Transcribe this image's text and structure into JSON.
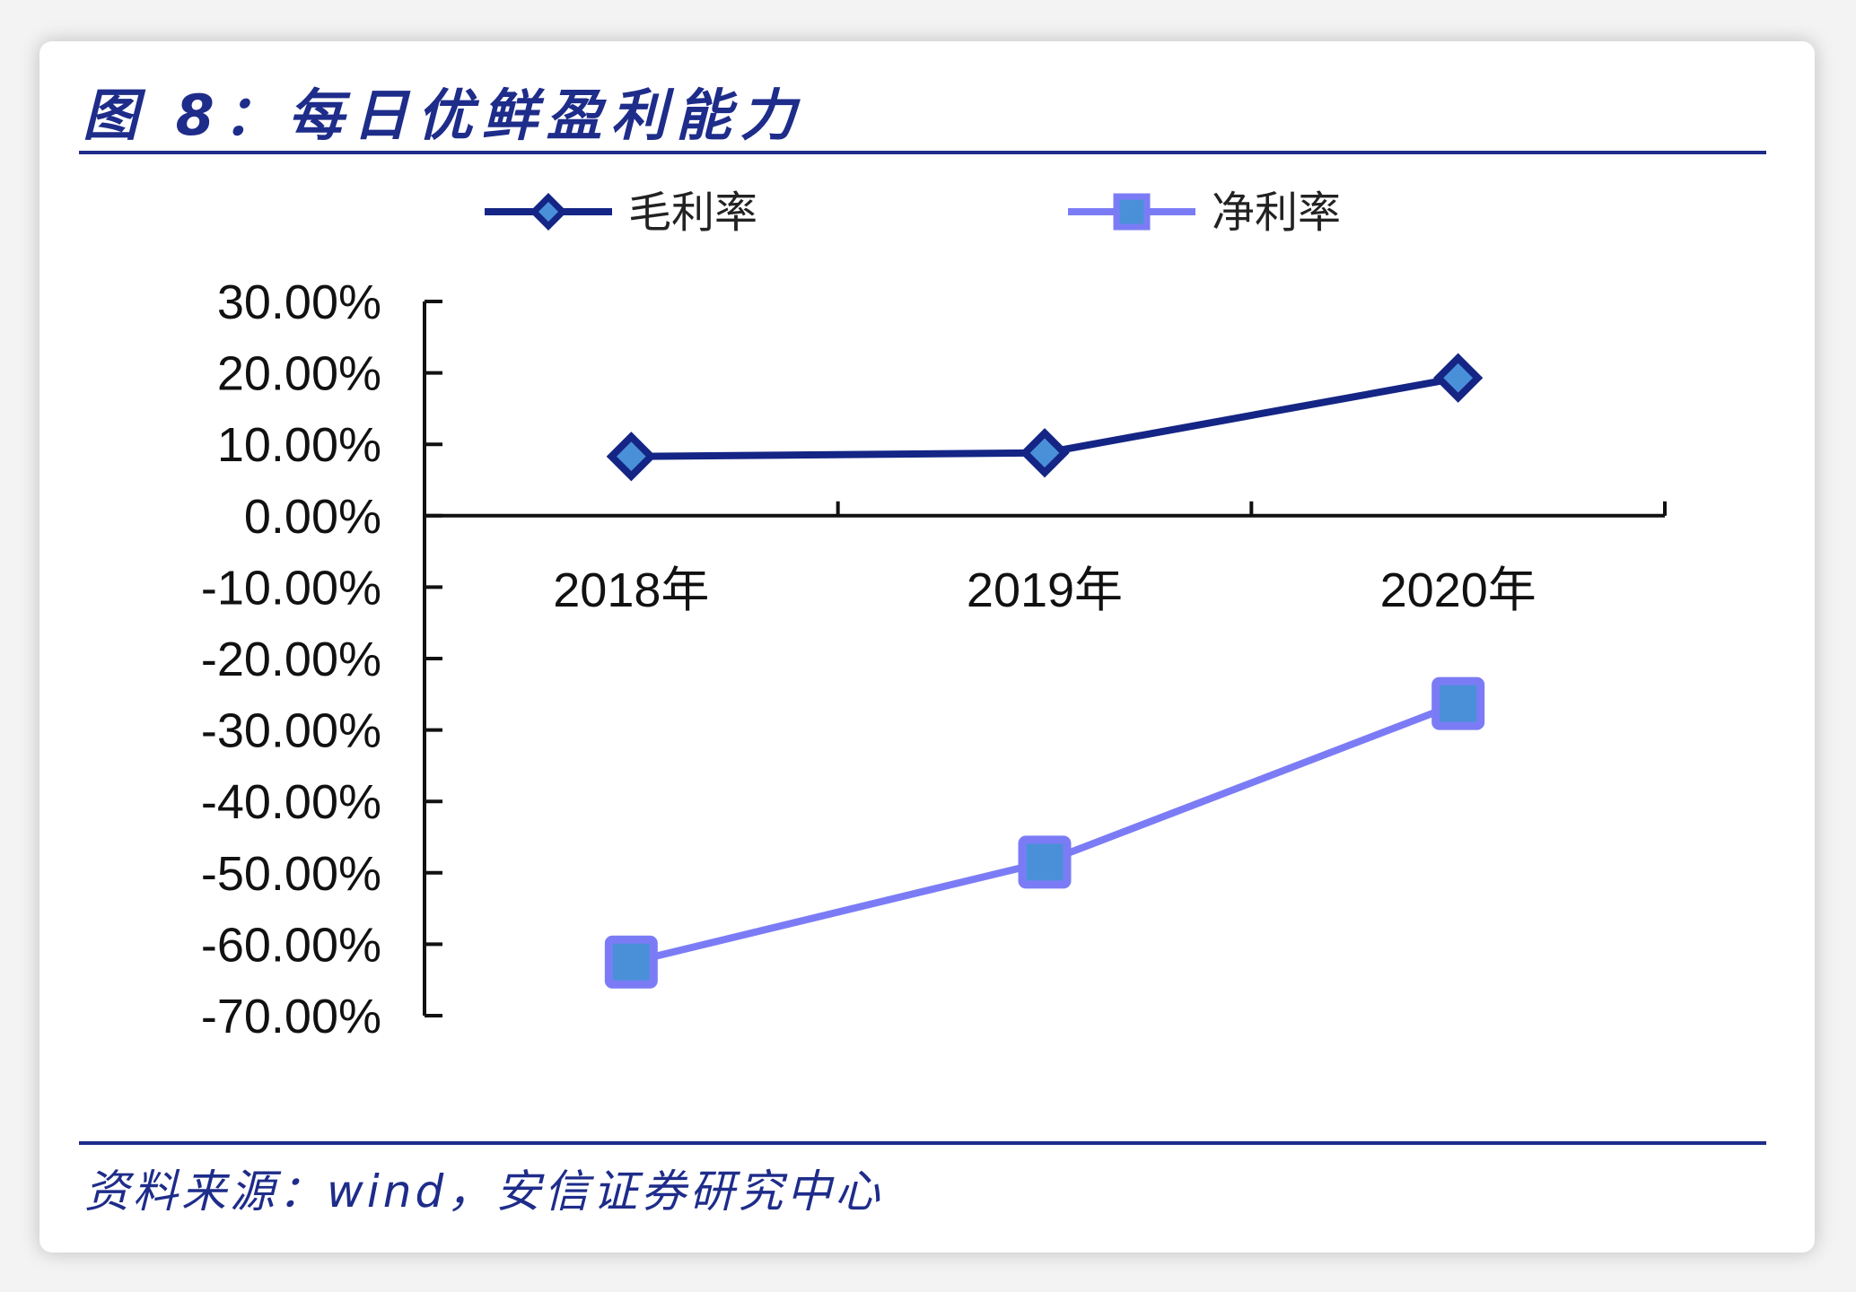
{
  "figure_title": "图 8：每日优鲜盈利能力",
  "source_note": "资料来源：wind，安信证券研究中心",
  "colors": {
    "title": "#1e2c8a",
    "gross_margin": "#142585",
    "net_margin": "#7b7cf5",
    "net_marker_fill": "#4a90d9",
    "axis": "#111111"
  },
  "chart_data": {
    "type": "line",
    "categories": [
      "2018年",
      "2019年",
      "2020年"
    ],
    "series": [
      {
        "name": "毛利率",
        "values": [
          8.3,
          8.8,
          19.3
        ],
        "marker": "diamond"
      },
      {
        "name": "净利率",
        "values": [
          -62.5,
          -48.5,
          -26.3
        ],
        "marker": "square"
      }
    ],
    "yticks": [
      "30.00%",
      "20.00%",
      "10.00%",
      "0.00%",
      "-10.00%",
      "-20.00%",
      "-30.00%",
      "-40.00%",
      "-50.00%",
      "-60.00%",
      "-70.00%"
    ],
    "ylim": [
      -70,
      30
    ],
    "legend_position": "top-center",
    "grid": false
  }
}
